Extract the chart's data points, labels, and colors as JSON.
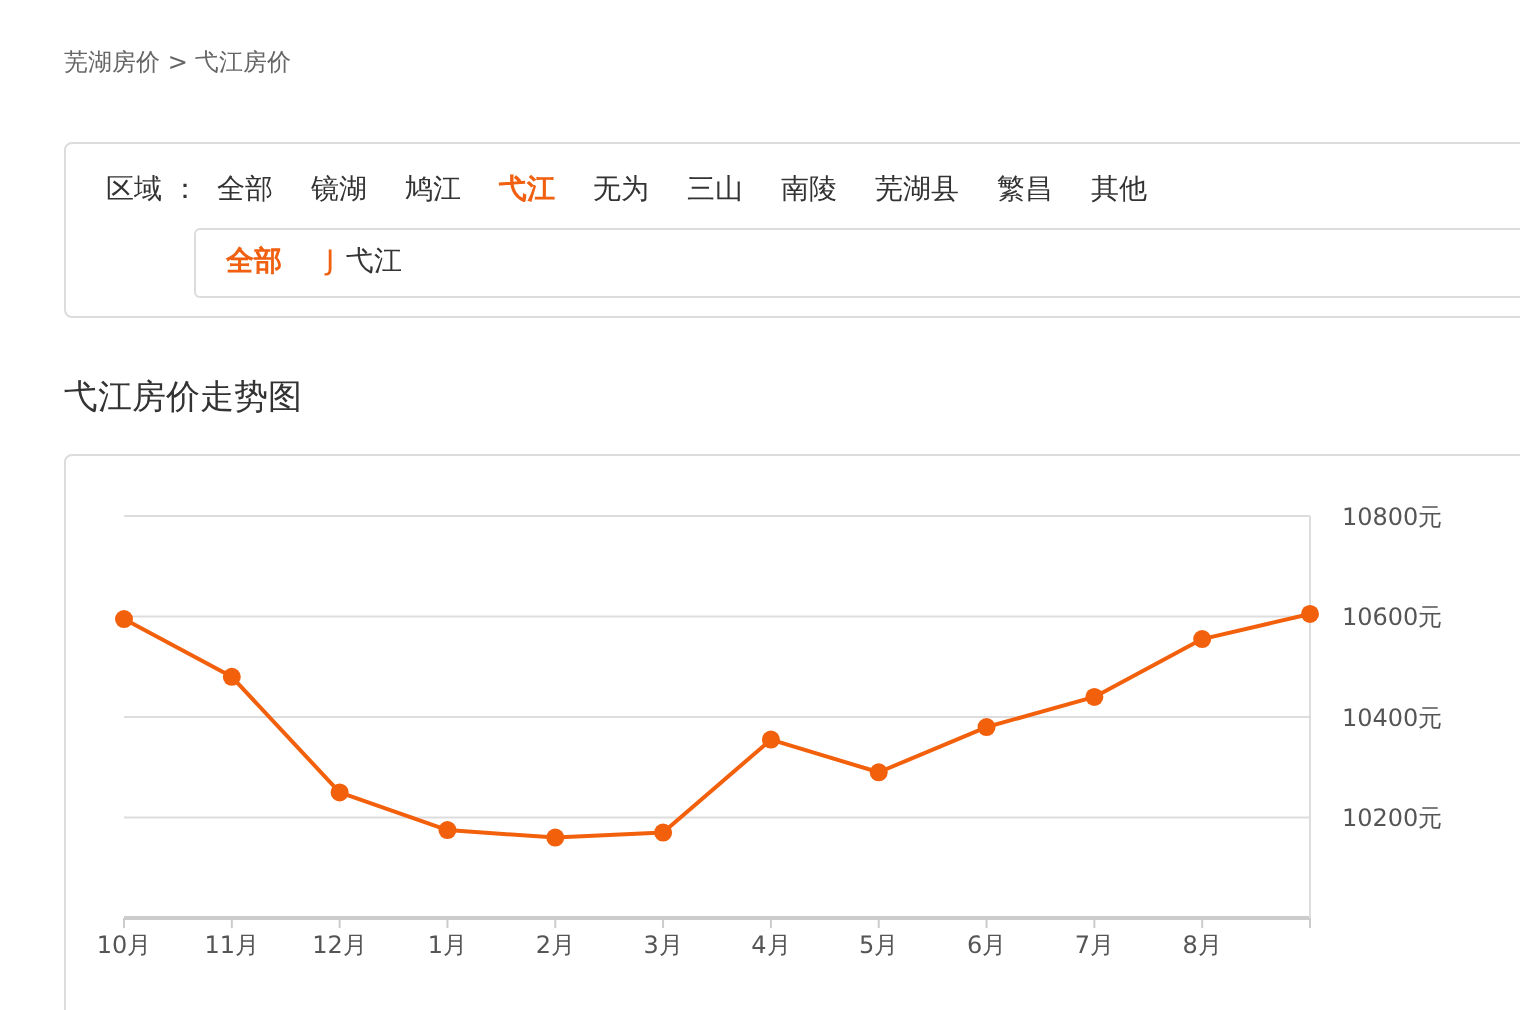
{
  "chart_data": [
    {
      "type": "other",
      "annotations": [
        "芜湖房价 > 弋江房价",
        "区域 ：",
        "全部",
        "镜湖",
        "鸠江",
        "弋江",
        "无为",
        "三山",
        "南陵",
        "芜湖县",
        "繁昌",
        "其他",
        "全部",
        "J",
        "弋江"
      ]
    },
    {
      "type": "line",
      "title": "弋江房价走势图",
      "categories": [
        "10月",
        "11月",
        "12月",
        "1月",
        "2月",
        "3月",
        "4月",
        "5月",
        "6月",
        "7月",
        "8月",
        null
      ],
      "series": [
        {
          "color": "#f2600c",
          "values": [
            10595,
            10480,
            10250,
            10175,
            10160,
            10170,
            10355,
            10290,
            10380,
            10440,
            10555,
            10605
          ]
        }
      ],
      "ylim": [
        10000,
        10800
      ],
      "yticks": [
        {
          "value": 10200,
          "label": "10200元"
        },
        {
          "value": 10400,
          "label": "10400元"
        },
        {
          "value": 10600,
          "label": "10600元"
        },
        {
          "value": 10800,
          "label": "10800元"
        }
      ],
      "grid": "y",
      "marker": "circle",
      "line_style": "solid"
    }
  ]
}
